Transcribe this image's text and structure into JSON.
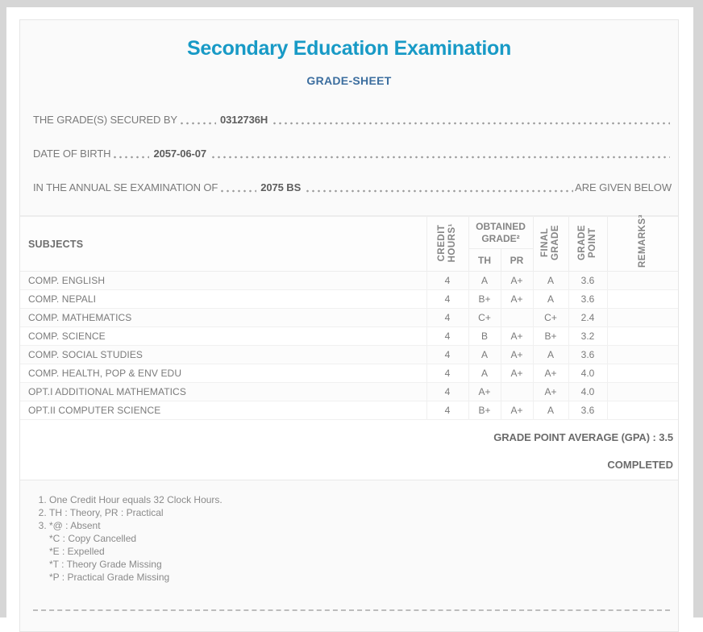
{
  "page": {
    "title": "Secondary Education Examination",
    "subtitle": "GRADE-SHEET"
  },
  "info_lines": [
    {
      "label": "THE GRADE(S) SECURED BY",
      "value": "0312736H",
      "suffix": ""
    },
    {
      "label": "DATE OF BIRTH",
      "value": "2057-06-07",
      "suffix": ""
    },
    {
      "label": "IN THE ANNUAL SE EXAMINATION OF",
      "value": "2075 BS",
      "suffix": "ARE GIVEN BELOW"
    }
  ],
  "table": {
    "headers": {
      "subjects": "SUBJECTS",
      "credit_hours": "CREDIT\nHOURS¹",
      "obtained_grade": "OBTAINED\nGRADE²",
      "th": "TH",
      "pr": "PR",
      "final_grade": "FINAL\nGRADE",
      "grade_point": "GRADE\nPOINT",
      "remarks": "REMARKS³"
    },
    "rows": [
      {
        "subject": "COMP. ENGLISH",
        "credit": "4",
        "th": "A",
        "pr": "A+",
        "final": "A",
        "point": "3.6",
        "remarks": ""
      },
      {
        "subject": "COMP. NEPALI",
        "credit": "4",
        "th": "B+",
        "pr": "A+",
        "final": "A",
        "point": "3.6",
        "remarks": ""
      },
      {
        "subject": "COMP. MATHEMATICS",
        "credit": "4",
        "th": "C+",
        "pr": "",
        "final": "C+",
        "point": "2.4",
        "remarks": ""
      },
      {
        "subject": "COMP. SCIENCE",
        "credit": "4",
        "th": "B",
        "pr": "A+",
        "final": "B+",
        "point": "3.2",
        "remarks": ""
      },
      {
        "subject": "COMP. SOCIAL STUDIES",
        "credit": "4",
        "th": "A",
        "pr": "A+",
        "final": "A",
        "point": "3.6",
        "remarks": ""
      },
      {
        "subject": "COMP. HEALTH, POP & ENV EDU",
        "credit": "4",
        "th": "A",
        "pr": "A+",
        "final": "A+",
        "point": "4.0",
        "remarks": ""
      },
      {
        "subject": "OPT.I ADDITIONAL MATHEMATICS",
        "credit": "4",
        "th": "A+",
        "pr": "",
        "final": "A+",
        "point": "4.0",
        "remarks": ""
      },
      {
        "subject": "OPT.II COMPUTER SCIENCE",
        "credit": "4",
        "th": "B+",
        "pr": "A+",
        "final": "A",
        "point": "3.6",
        "remarks": ""
      }
    ]
  },
  "summary": {
    "gpa_label": "GRADE POINT AVERAGE (GPA) :",
    "gpa_value": "3.5",
    "status": "COMPLETED"
  },
  "footnotes": [
    "One Credit Hour equals 32 Clock Hours.",
    "TH : Theory, PR : Practical",
    "*@ : Absent\n*C : Copy Cancelled\n*E : Expelled\n*T : Theory Grade Missing\n*P : Practical Grade Missing"
  ],
  "colors": {
    "title": "#189ac6",
    "subtitle": "#3c6e9f",
    "body_text": "#7a7a7a",
    "frame": "#d6d6d6"
  }
}
